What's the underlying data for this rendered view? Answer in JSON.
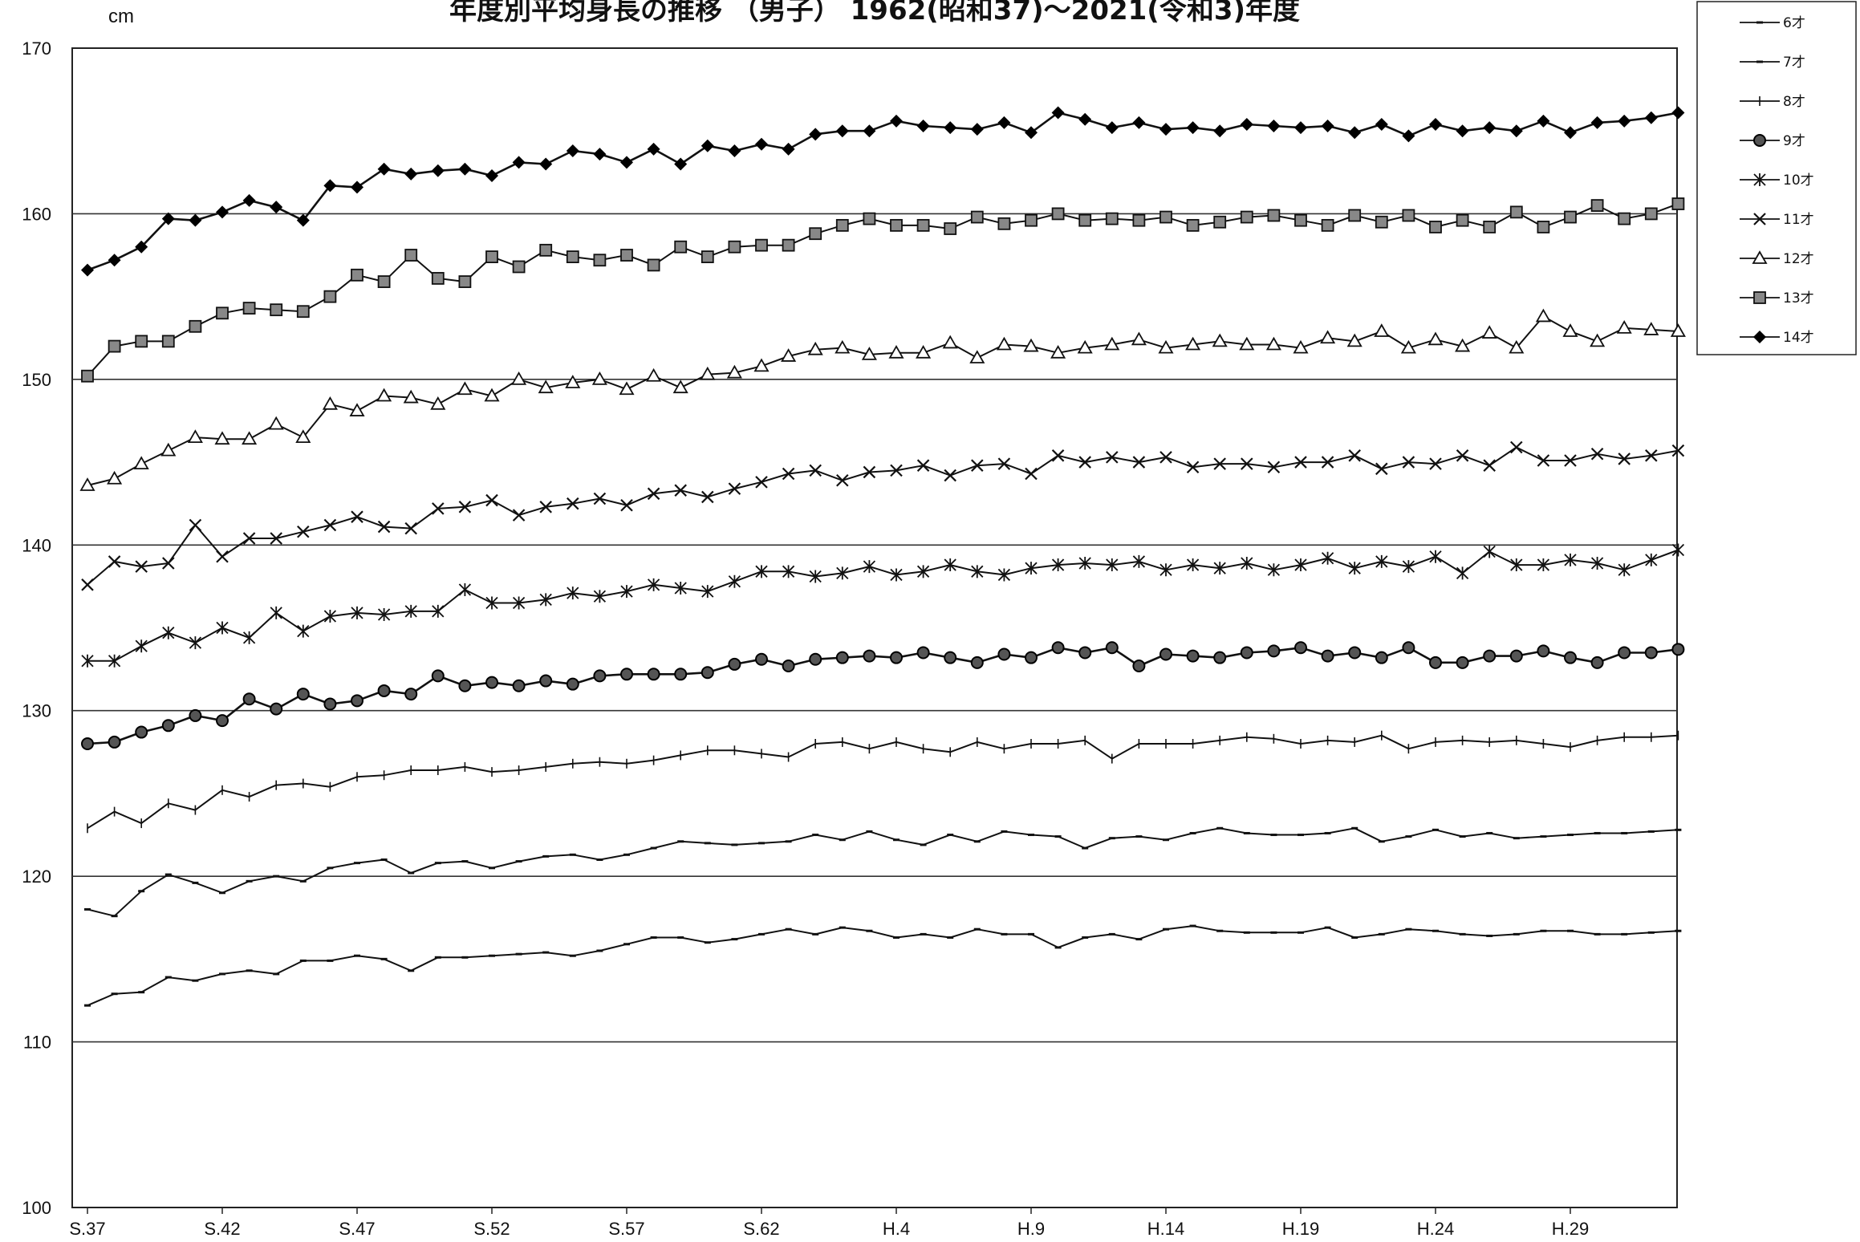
{
  "chart_data": {
    "type": "line",
    "title": "年度別平均身長の推移 （男子） 1962(昭和37)～2021(令和3)年度",
    "ylabel": "cm",
    "ylim": [
      100,
      170
    ],
    "yticks": [
      100,
      110,
      120,
      130,
      140,
      150,
      160,
      170
    ],
    "grid": "horizontal",
    "legend_position": "top-right",
    "x_tick_labels": [
      {
        "index": 0,
        "label": "S.37"
      },
      {
        "index": 5,
        "label": "S.42"
      },
      {
        "index": 10,
        "label": "S.47"
      },
      {
        "index": 15,
        "label": "S.52"
      },
      {
        "index": 20,
        "label": "S.57"
      },
      {
        "index": 25,
        "label": "S.62"
      },
      {
        "index": 30,
        "label": "H.4"
      },
      {
        "index": 35,
        "label": "H.9"
      },
      {
        "index": 40,
        "label": "H.14"
      },
      {
        "index": 45,
        "label": "H.19"
      },
      {
        "index": 50,
        "label": "H.24"
      },
      {
        "index": 55,
        "label": "H.29"
      }
    ],
    "x_count": 60,
    "series": [
      {
        "name": "6才",
        "marker": "dash",
        "values": [
          112.2,
          112.9,
          113.0,
          113.9,
          113.7,
          114.1,
          114.3,
          114.1,
          114.9,
          114.9,
          115.2,
          115.0,
          114.3,
          115.1,
          115.1,
          115.2,
          115.3,
          115.4,
          115.2,
          115.5,
          115.9,
          116.3,
          116.3,
          116.0,
          116.2,
          116.5,
          116.8,
          116.5,
          116.9,
          116.7,
          116.3,
          116.5,
          116.3,
          116.8,
          116.5,
          116.5,
          115.7,
          116.3,
          116.5,
          116.2,
          116.8,
          117.0,
          116.7,
          116.6,
          116.6,
          116.6,
          116.9,
          116.3,
          116.5,
          116.8,
          116.7,
          116.5,
          116.4,
          116.5,
          116.7,
          116.7,
          116.5,
          116.5,
          116.6,
          116.7
        ]
      },
      {
        "name": "7才",
        "marker": "dash",
        "values": [
          118.0,
          117.6,
          119.1,
          120.1,
          119.6,
          119.0,
          119.7,
          120.0,
          119.7,
          120.5,
          120.8,
          121.0,
          120.2,
          120.8,
          120.9,
          120.5,
          120.9,
          121.2,
          121.3,
          121.0,
          121.3,
          121.7,
          122.1,
          122.0,
          121.9,
          122.0,
          122.1,
          122.5,
          122.2,
          122.7,
          122.2,
          121.9,
          122.5,
          122.1,
          122.7,
          122.5,
          122.4,
          121.7,
          122.3,
          122.4,
          122.2,
          122.6,
          122.9,
          122.6,
          122.5,
          122.5,
          122.6,
          122.9,
          122.1,
          122.4,
          122.8,
          122.4,
          122.6,
          122.3,
          122.4,
          122.5,
          122.6,
          122.6,
          122.7,
          122.8
        ]
      },
      {
        "name": "8才",
        "marker": "plus",
        "values": [
          122.9,
          123.9,
          123.2,
          124.4,
          124.0,
          125.2,
          124.8,
          125.5,
          125.6,
          125.4,
          126.0,
          126.1,
          126.4,
          126.4,
          126.6,
          126.3,
          126.4,
          126.6,
          126.8,
          126.9,
          126.8,
          127.0,
          127.3,
          127.6,
          127.6,
          127.4,
          127.2,
          128.0,
          128.1,
          127.7,
          128.1,
          127.7,
          127.5,
          128.1,
          127.7,
          128.0,
          128.0,
          128.2,
          127.1,
          128.0,
          128.0,
          128.0,
          128.2,
          128.4,
          128.3,
          128.0,
          128.2,
          128.1,
          128.5,
          127.7,
          128.1,
          128.2,
          128.1,
          128.2,
          128.0,
          127.8,
          128.2,
          128.4,
          128.4,
          128.5
        ]
      },
      {
        "name": "9才",
        "marker": "circle",
        "values": [
          128.0,
          128.1,
          128.7,
          129.1,
          129.7,
          129.4,
          130.7,
          130.1,
          131.0,
          130.4,
          130.6,
          131.2,
          131.0,
          132.1,
          131.5,
          131.7,
          131.5,
          131.8,
          131.6,
          132.1,
          132.2,
          132.2,
          132.2,
          132.3,
          132.8,
          133.1,
          132.7,
          133.1,
          133.2,
          133.3,
          133.2,
          133.5,
          133.2,
          132.9,
          133.4,
          133.2,
          133.8,
          133.5,
          133.8,
          132.7,
          133.4,
          133.3,
          133.2,
          133.5,
          133.6,
          133.8,
          133.3,
          133.5,
          133.2,
          133.8,
          132.9,
          132.9,
          133.3,
          133.3,
          133.6,
          133.2,
          132.9,
          133.5,
          133.5,
          133.7
        ]
      },
      {
        "name": "10才",
        "marker": "star",
        "values": [
          133.0,
          133.0,
          133.9,
          134.7,
          134.1,
          135.0,
          134.4,
          135.9,
          134.8,
          135.7,
          135.9,
          135.8,
          136.0,
          136.0,
          137.3,
          136.5,
          136.5,
          136.7,
          137.1,
          136.9,
          137.2,
          137.6,
          137.4,
          137.2,
          137.8,
          138.4,
          138.4,
          138.1,
          138.3,
          138.7,
          138.2,
          138.4,
          138.8,
          138.4,
          138.2,
          138.6,
          138.8,
          138.9,
          138.8,
          139.0,
          138.5,
          138.8,
          138.6,
          138.9,
          138.5,
          138.8,
          139.2,
          138.6,
          139.0,
          138.7,
          139.3,
          138.3,
          139.6,
          138.8,
          138.8,
          139.1,
          138.9,
          138.5,
          139.1,
          139.7
        ]
      },
      {
        "name": "11才",
        "marker": "x",
        "values": [
          137.6,
          139.0,
          138.7,
          138.9,
          141.2,
          139.3,
          140.4,
          140.4,
          140.8,
          141.2,
          141.7,
          141.1,
          141.0,
          142.2,
          142.3,
          142.7,
          141.8,
          142.3,
          142.5,
          142.8,
          142.4,
          143.1,
          143.3,
          142.9,
          143.4,
          143.8,
          144.3,
          144.5,
          143.9,
          144.4,
          144.5,
          144.8,
          144.2,
          144.8,
          144.9,
          144.3,
          145.4,
          145.0,
          145.3,
          145.0,
          145.3,
          144.7,
          144.9,
          144.9,
          144.7,
          145.0,
          145.0,
          145.4,
          144.6,
          145.0,
          144.9,
          145.4,
          144.8,
          145.9,
          145.1,
          145.1,
          145.5,
          145.2,
          145.4,
          145.7
        ]
      },
      {
        "name": "12才",
        "marker": "triangle",
        "values": [
          143.6,
          144.0,
          144.9,
          145.7,
          146.5,
          146.4,
          146.4,
          147.3,
          146.5,
          148.5,
          148.1,
          149.0,
          148.9,
          148.5,
          149.4,
          149.0,
          150.0,
          149.5,
          149.8,
          150.0,
          149.4,
          150.2,
          149.5,
          150.3,
          150.4,
          150.8,
          151.4,
          151.8,
          151.9,
          151.5,
          151.6,
          151.6,
          152.2,
          151.3,
          152.1,
          152.0,
          151.6,
          151.9,
          152.1,
          152.4,
          151.9,
          152.1,
          152.3,
          152.1,
          152.1,
          151.9,
          152.5,
          152.3,
          152.9,
          151.9,
          152.4,
          152.0,
          152.8,
          151.9,
          153.8,
          152.9,
          152.3,
          153.1,
          153.0,
          152.9
        ]
      },
      {
        "name": "13才",
        "marker": "square",
        "values": [
          150.2,
          152.0,
          152.3,
          152.3,
          153.2,
          154.0,
          154.3,
          154.2,
          154.1,
          155.0,
          156.3,
          155.9,
          157.5,
          156.1,
          155.9,
          157.4,
          156.8,
          157.8,
          157.4,
          157.2,
          157.5,
          156.9,
          158.0,
          157.4,
          158.0,
          158.1,
          158.1,
          158.8,
          159.3,
          159.7,
          159.3,
          159.3,
          159.1,
          159.8,
          159.4,
          159.6,
          160.0,
          159.6,
          159.7,
          159.6,
          159.8,
          159.3,
          159.5,
          159.8,
          159.9,
          159.6,
          159.3,
          159.9,
          159.5,
          159.9,
          159.2,
          159.6,
          159.2,
          160.1,
          159.2,
          159.8,
          160.5,
          159.7,
          160.0,
          160.6
        ]
      },
      {
        "name": "14才",
        "marker": "diamond",
        "values": [
          156.6,
          157.2,
          158.0,
          159.7,
          159.6,
          160.1,
          160.8,
          160.4,
          159.6,
          161.7,
          161.6,
          162.7,
          162.4,
          162.6,
          162.7,
          162.3,
          163.1,
          163.0,
          163.8,
          163.6,
          163.1,
          163.9,
          163.0,
          164.1,
          163.8,
          164.2,
          163.9,
          164.8,
          165.0,
          165.0,
          165.6,
          165.3,
          165.2,
          165.1,
          165.5,
          164.9,
          166.1,
          165.7,
          165.2,
          165.5,
          165.1,
          165.2,
          165.0,
          165.4,
          165.3,
          165.2,
          165.3,
          164.9,
          165.4,
          164.7,
          165.4,
          165.0,
          165.2,
          165.0,
          165.6,
          164.9,
          165.5,
          165.6,
          165.8,
          166.1
        ]
      }
    ]
  }
}
